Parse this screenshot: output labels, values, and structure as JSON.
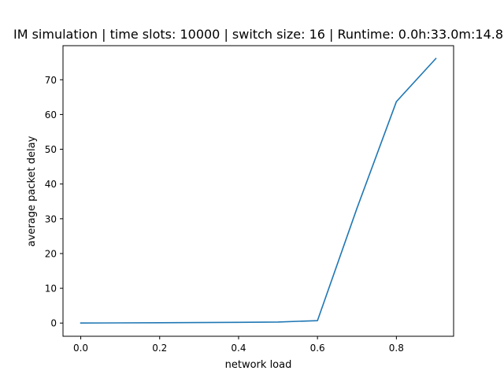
{
  "chart_data": {
    "type": "line",
    "title": "IM simulation | time slots: 10000 | switch size: 16 | Runtime: 0.0h:33.0m:14.8",
    "xlabel": "network load",
    "ylabel": "average packet delay",
    "xlim": [
      -0.045,
      0.945
    ],
    "ylim": [
      -3.8,
      79.8
    ],
    "x_ticks": [
      0.0,
      0.2,
      0.4,
      0.6,
      0.8
    ],
    "x_tick_labels": [
      "0.0",
      "0.2",
      "0.4",
      "0.6",
      "0.8"
    ],
    "y_ticks": [
      0,
      10,
      20,
      30,
      40,
      50,
      60,
      70
    ],
    "y_tick_labels": [
      "0",
      "10",
      "20",
      "30",
      "40",
      "50",
      "60",
      "70"
    ],
    "grid": false,
    "series": [
      {
        "color": "#1f77b4",
        "x": [
          0.0,
          0.1,
          0.2,
          0.3,
          0.4,
          0.5,
          0.6,
          0.7,
          0.8,
          0.9
        ],
        "y": [
          0.0,
          0.05,
          0.1,
          0.15,
          0.2,
          0.3,
          0.7,
          33.0,
          63.7,
          76.1
        ]
      }
    ]
  }
}
